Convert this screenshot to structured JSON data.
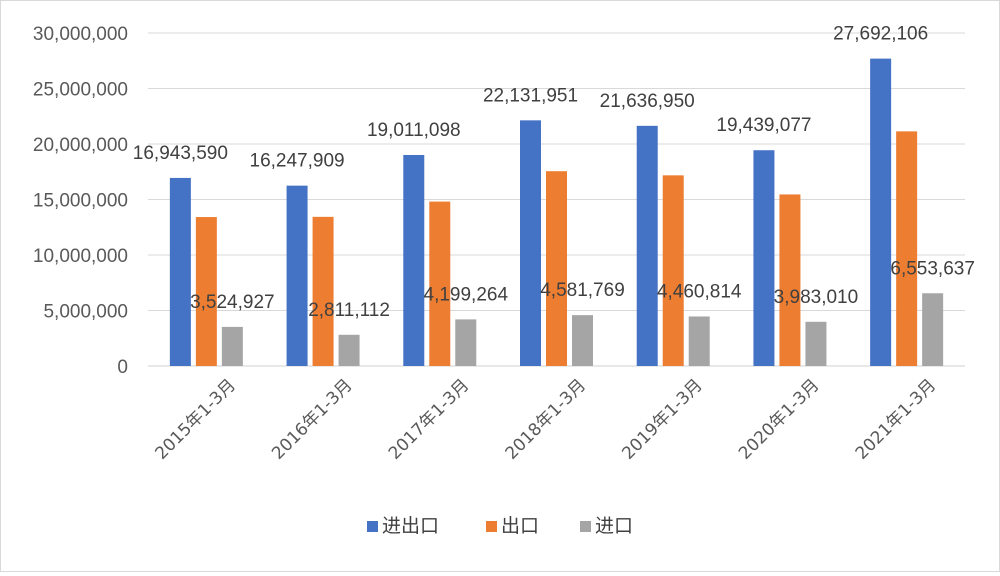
{
  "chart_data": {
    "type": "bar",
    "title": "",
    "xlabel": "",
    "ylabel": "",
    "categories": [
      "2015年1-3月",
      "2016年1-3月",
      "2017年1-3月",
      "2018年1-3月",
      "2019年1-3月",
      "2020年1-3月",
      "2021年1-3月"
    ],
    "series": [
      {
        "name": "进出口",
        "color": "#4472c4",
        "values": [
          16943590,
          16247909,
          19011098,
          22131951,
          21636950,
          19439077,
          27692106
        ]
      },
      {
        "name": "出口",
        "color": "#ed7d31",
        "values": [
          13418663,
          13436797,
          14811834,
          17550182,
          17176136,
          15456067,
          21138469
        ]
      },
      {
        "name": "进口",
        "color": "#a5a5a5",
        "values": [
          3524927,
          2811112,
          4199264,
          4581769,
          4460814,
          3983010,
          6553637
        ]
      }
    ],
    "data_labels": [
      {
        "series": 0,
        "texts": [
          "16,943,590",
          "16,247,909",
          "19,011,098",
          "22,131,951",
          "21,636,950",
          "19,439,077",
          "27,692,106"
        ]
      },
      {
        "series": 2,
        "texts": [
          "3,524,927",
          "2,811,112",
          "4,199,264",
          "4,581,769",
          "4,460,814",
          "3,983,010",
          "6,553,637"
        ]
      }
    ],
    "yticks": [
      0,
      5000000,
      10000000,
      15000000,
      20000000,
      25000000,
      30000000
    ],
    "ytick_labels": [
      "0",
      "5,000,000",
      "10,000,000",
      "15,000,000",
      "20,000,000",
      "25,000,000",
      "30,000,000"
    ],
    "ylim": [
      0,
      30000000
    ],
    "grid": true,
    "legend_position": "bottom"
  }
}
